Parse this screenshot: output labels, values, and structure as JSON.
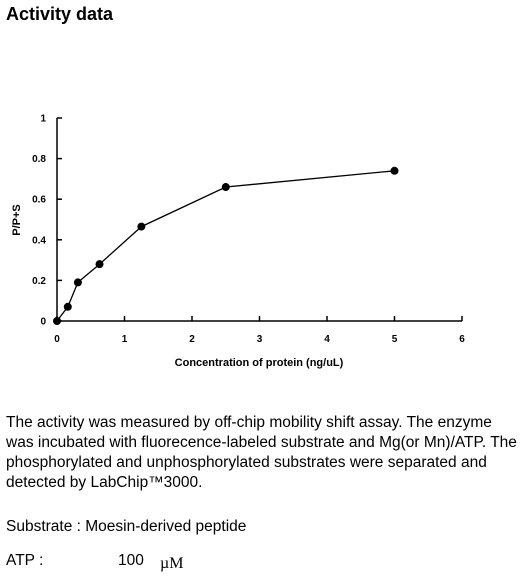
{
  "heading": "Activity data",
  "chart_data": {
    "type": "line",
    "title": "",
    "xlabel": "Concentration of protein (ng/uL)",
    "ylabel": "P/P+S",
    "xlim": [
      0,
      6
    ],
    "ylim": [
      0,
      1
    ],
    "x_ticks": [
      "0",
      "1",
      "2",
      "3",
      "4",
      "5",
      "6"
    ],
    "y_ticks": [
      "0",
      "0.2",
      "0.4",
      "0.6",
      "0.8",
      "1"
    ],
    "grid": false,
    "legend": "none",
    "series": [
      {
        "x": [
          0,
          0.16,
          0.31,
          0.63,
          1.25,
          2.5,
          5
        ],
        "y": [
          0.0,
          0.07,
          0.19,
          0.28,
          0.465,
          0.66,
          0.74
        ]
      }
    ],
    "colors": {
      "line": "#000000",
      "marker": "#000000",
      "axis": "#000000"
    }
  },
  "description": "The activity was measured by off-chip mobility shift assay. The enzyme was incubated with fluorecence-labeled  substrate and Mg(or Mn)/ATP. The phosphorylated and unphosphorylated substrates were separated and detected by LabChip™3000.",
  "substrate": {
    "text": "Substrate : Moesin-derived peptide"
  },
  "atp": {
    "label": "ATP :",
    "value": "100",
    "unit": "µM"
  }
}
